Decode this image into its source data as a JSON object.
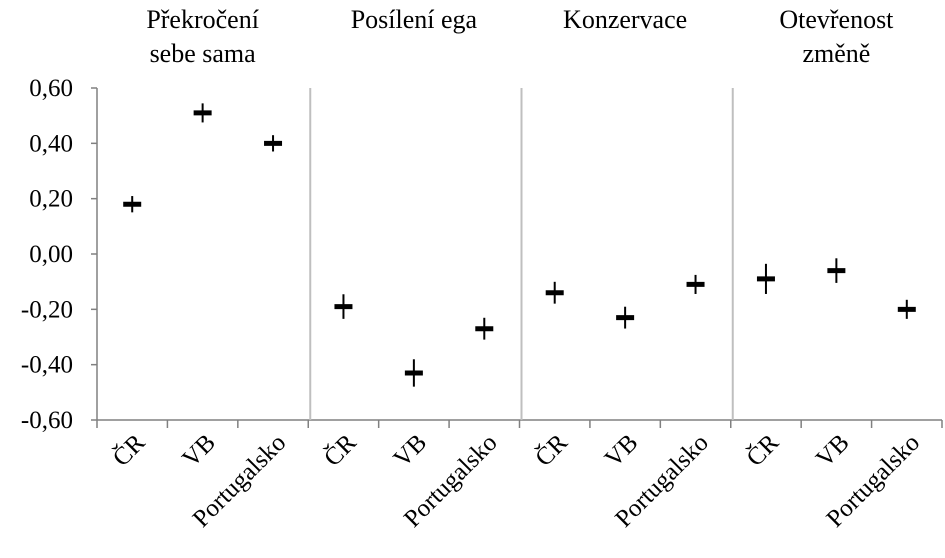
{
  "chart_data": {
    "type": "scatter",
    "marker": "plus-with-error-bars",
    "ylim": [
      -0.6,
      0.6
    ],
    "y_ticks": [
      "-0,60",
      "-0,40",
      "-0,20",
      "0,00",
      "0,20",
      "0,40",
      "0,60"
    ],
    "y_tick_values": [
      -0.6,
      -0.4,
      -0.2,
      0.0,
      0.2,
      0.4,
      0.6
    ],
    "grid": false,
    "legend": "none",
    "groups": [
      {
        "title_lines": [
          "Překročení",
          "sebe sama"
        ],
        "categories": [
          "ČR",
          "VB",
          "Portugalsko"
        ],
        "values": [
          0.18,
          0.51,
          0.4
        ],
        "errors": [
          0.015,
          0.02,
          0.015
        ]
      },
      {
        "title_lines": [
          "Posílení ega"
        ],
        "categories": [
          "ČR",
          "VB",
          "Portugalsko"
        ],
        "values": [
          -0.19,
          -0.43,
          -0.27
        ],
        "errors": [
          0.03,
          0.035,
          0.025
        ]
      },
      {
        "title_lines": [
          "Konzervace"
        ],
        "categories": [
          "ČR",
          "VB",
          "Portugalsko"
        ],
        "values": [
          -0.14,
          -0.23,
          -0.11
        ],
        "errors": [
          0.025,
          0.025,
          0.02
        ]
      },
      {
        "title_lines": [
          "Otevřenost",
          "změně"
        ],
        "categories": [
          "ČR",
          "VB",
          "Portugalsko"
        ],
        "values": [
          -0.09,
          -0.06,
          -0.2
        ],
        "errors": [
          0.04,
          0.03,
          0.02
        ]
      }
    ],
    "colors": {
      "marker": "#000000",
      "axis": "#808080",
      "separator": "#bfbfbf"
    }
  }
}
